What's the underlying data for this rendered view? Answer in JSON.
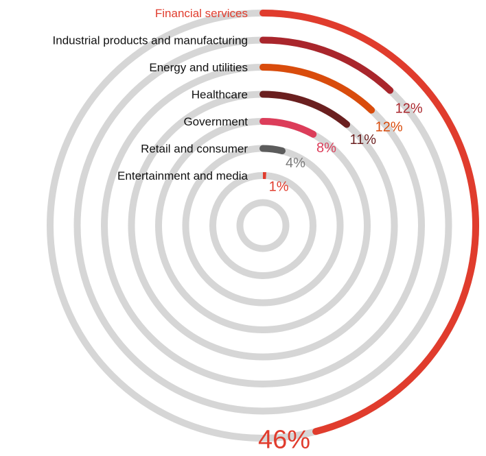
{
  "chart_data": {
    "type": "radial-bar",
    "title": "",
    "max_value": 100,
    "series": [
      {
        "name": "Financial services",
        "value": 46,
        "label": "46%",
        "color": "#e03c2d",
        "label_color": "#e03c2d"
      },
      {
        "name": "Industrial products and manufacturing",
        "value": 12,
        "label": "12%",
        "color": "#a9262c",
        "label_color": "#a9262c"
      },
      {
        "name": "Energy and utilities",
        "value": 12,
        "label": "12%",
        "color": "#d94c0c",
        "label_color": "#d94c0c"
      },
      {
        "name": "Healthcare",
        "value": 11,
        "label": "11%",
        "color": "#6a1f1f",
        "label_color": "#6a1f1f"
      },
      {
        "name": "Government",
        "value": 8,
        "label": "8%",
        "color": "#dc3d5a",
        "label_color": "#dc3d5a"
      },
      {
        "name": "Retail and consumer",
        "value": 4,
        "label": "4%",
        "color": "#5c5c5c",
        "label_color": "#7a7a7a"
      },
      {
        "name": "Entertainment and media",
        "value": 1,
        "label": "1%",
        "color": "#e03c2d",
        "label_color": "#e03c2d"
      }
    ],
    "track_color": "#d6d6d6",
    "category_label_color": "#111111",
    "first_category_label_color": "#e03c2d"
  }
}
